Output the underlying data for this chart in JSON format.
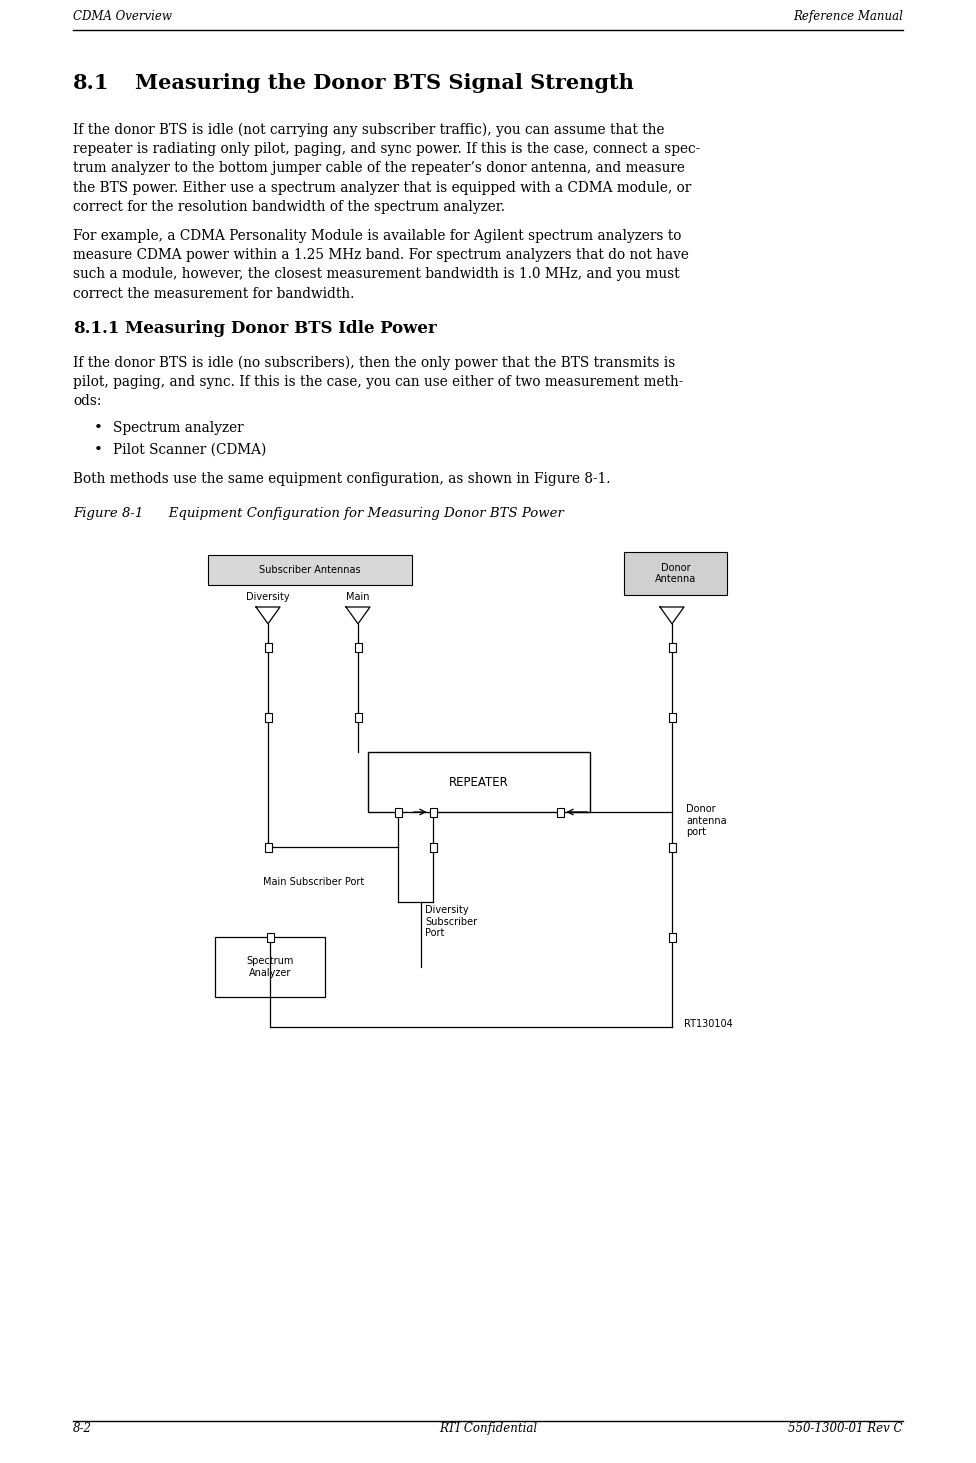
{
  "header_left": "CDMA Overview",
  "header_right": "Reference Manual",
  "footer_left": "8-2",
  "footer_center": "RTI Confidential",
  "footer_right": "550-1300-01 Rev C",
  "section_title": "8.1   Measuring the Donor BTS Signal Strength",
  "para1_lines": [
    "If the donor BTS is idle (not carrying any subscriber traffic), you can assume that the",
    "repeater is radiating only pilot, paging, and sync power. If this is the case, connect a spec-",
    "trum analyzer to the bottom jumper cable of the repeater’s donor antenna, and measure",
    "the BTS power. Either use a spectrum analyzer that is equipped with a CDMA module, or",
    "correct for the resolution bandwidth of the spectrum analyzer."
  ],
  "para2_lines": [
    "For example, a CDMA Personality Module is available for Agilent spectrum analyzers to",
    "measure CDMA power within a 1.25 MHz band. For spectrum analyzers that do not have",
    "such a module, however, the closest measurement bandwidth is 1.0 MHz, and you must",
    "correct the measurement for bandwidth."
  ],
  "subsection_title": "8.1.1   Measuring Donor BTS Idle Power",
  "para3_lines": [
    "If the donor BTS is idle (no subscribers), then the only power that the BTS transmits is",
    "pilot, paging, and sync. If this is the case, you can use either of two measurement meth-",
    "ods:"
  ],
  "bullet1": "Spectrum analyzer",
  "bullet2": "Pilot Scanner (CDMA)",
  "after_bullets": "Both methods use the same equipment configuration, as shown in Figure 8-1.",
  "figure_caption": "Figure 8-1      Equipment Configuration for Measuring Donor BTS Power",
  "watermark_code": "RT130104",
  "bg_color": "#ffffff",
  "text_color": "#000000"
}
